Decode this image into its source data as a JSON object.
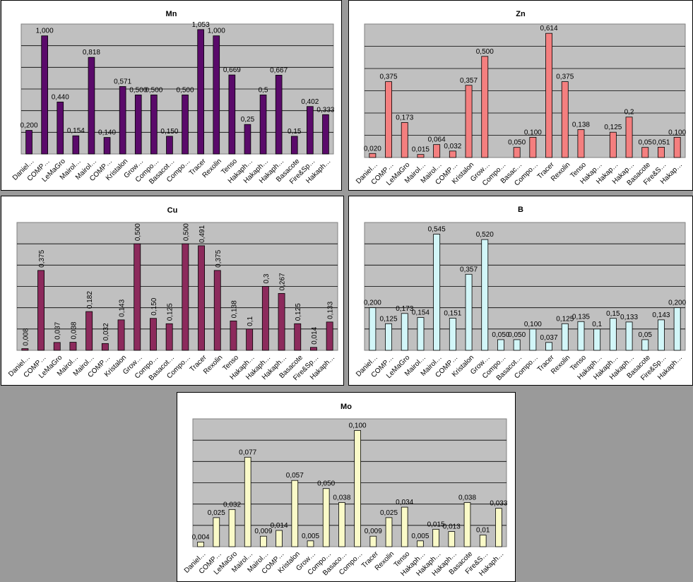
{
  "chart_data": [
    {
      "id": "mn",
      "type": "bar",
      "title": "Mn",
      "ylim": [
        0,
        1.1
      ],
      "grid": true,
      "bar_color": "#5a0a6a",
      "categories": [
        "Daniel…",
        "COMP…",
        "LeMaGro",
        "Mairol…",
        "Mairol…",
        "COMP…",
        "Kristalon",
        "Grow…",
        "Compo…",
        "Basacot…",
        "Compo…",
        "Tracer",
        "Rexolin",
        "Tenso",
        "Hakaph…",
        "Hakaph…",
        "Hakaph…",
        "Basacote",
        "Fire&Sp…",
        "Hakaph…"
      ],
      "values": [
        0.2,
        1.0,
        0.44,
        0.154,
        0.818,
        0.14,
        0.571,
        0.5,
        0.5,
        0.15,
        0.5,
        1.053,
        1.0,
        0.669,
        0.25,
        0.5,
        0.667,
        0.15,
        0.402,
        0.333
      ],
      "labels": [
        "0,200",
        "1,000",
        "0,440",
        "0,154",
        "0,818",
        "0,140",
        "0,571",
        "0,500",
        "0,500",
        "0,150",
        "0,500",
        "1,053",
        "1,000",
        "0,669",
        "0,25",
        "0,5",
        "0,667",
        "0,15",
        "0,402",
        "0,333"
      ]
    },
    {
      "id": "zn",
      "type": "bar",
      "title": "Zn",
      "ylim": [
        0,
        0.66
      ],
      "grid": true,
      "bar_color": "#f47f7f",
      "categories": [
        "Daniel…",
        "COMP…",
        "LeMaGro",
        "Mairol…",
        "Mairol…",
        "COMP…",
        "Kristalon",
        "Grow…",
        "Compo…",
        "Basac…",
        "Compo…",
        "Tracer",
        "Rexolin",
        "Tenso",
        "Hakap…",
        "Hakap…",
        "Hakap…",
        "Basacote",
        "Fire&S…",
        "Hakap…"
      ],
      "values": [
        0.02,
        0.375,
        0.173,
        0.015,
        0.064,
        0.032,
        0.357,
        0.5,
        null,
        0.05,
        0.1,
        0.614,
        0.375,
        0.138,
        null,
        0.125,
        0.2,
        0.05,
        0.051,
        0.1
      ],
      "labels": [
        "0,020",
        "0,375",
        "0,173",
        "0,015",
        "0,064",
        "0,032",
        "0,357",
        "0,500",
        "",
        "0,050",
        "0,100",
        "0,614",
        "0,375",
        "0,138",
        "",
        "0,125",
        "0,2",
        "0,05",
        "0,051",
        "0,100"
      ]
    },
    {
      "id": "cu",
      "type": "bar",
      "title": "Cu",
      "ylim": [
        0,
        0.6
      ],
      "grid": true,
      "bar_color": "#8c2a5c",
      "label_rotation": -90,
      "categories": [
        "Daniel…",
        "COMP…",
        "LeMaGro",
        "Mairol…",
        "Mairol…",
        "COMP…",
        "Kristalon",
        "Grow…",
        "Compo…",
        "Basacot…",
        "Compo…",
        "Tracer",
        "Rexolin",
        "Tenso",
        "Hakaph…",
        "Hakaph…",
        "Hakaph…",
        "Basacote",
        "Fire&Sp…",
        "Hakaph…"
      ],
      "values": [
        0.008,
        0.375,
        0.037,
        0.038,
        0.182,
        0.032,
        0.143,
        0.5,
        0.15,
        0.125,
        0.5,
        0.491,
        0.375,
        0.138,
        0.1,
        0.3,
        0.267,
        0.125,
        0.014,
        0.133
      ],
      "labels": [
        "0,008",
        "0,375",
        "0,037",
        "0,038",
        "0,182",
        "0,032",
        "0,143",
        "0,500",
        "0,150",
        "0,125",
        "0,500",
        "0,491",
        "0,375",
        "0,138",
        "0,1",
        "0,3",
        "0,267",
        "0,125",
        "0,014",
        "0,133"
      ]
    },
    {
      "id": "b",
      "type": "bar",
      "title": "B",
      "ylim": [
        0,
        0.6
      ],
      "grid": true,
      "bar_color": "#d2f6f8",
      "categories": [
        "Daniel…",
        "COMP…",
        "LeMaGro",
        "Mairol…",
        "Mairol…",
        "COMP…",
        "Kristalon",
        "Grow…",
        "Compo…",
        "Basacot…",
        "Compo…",
        "Tracer",
        "Rexolin",
        "Tenso",
        "Hakaph…",
        "Hakaph…",
        "Hakaph…",
        "Basacote",
        "Fire&Sp…",
        "Hakaph…"
      ],
      "values": [
        0.2,
        0.125,
        0.173,
        0.154,
        0.545,
        0.151,
        0.357,
        0.52,
        0.05,
        0.05,
        0.1,
        0.037,
        0.125,
        0.135,
        0.1,
        0.15,
        0.133,
        0.05,
        0.143,
        0.2
      ],
      "labels": [
        "0,200",
        "0,125",
        "0,173",
        "0,154",
        "0,545",
        "0,151",
        "0,357",
        "0,520",
        "0,050",
        "0,050",
        "0,100",
        "0,037",
        "0,125",
        "0,135",
        "0,1",
        "0,15",
        "0,133",
        "0,05",
        "0,143",
        "0,200"
      ]
    },
    {
      "id": "mo",
      "type": "bar",
      "title": "Mo",
      "ylim": [
        0,
        0.11
      ],
      "grid": true,
      "bar_color": "#fafac8",
      "categories": [
        "Daniel…",
        "COMP…",
        "LeMaGro",
        "Mairol…",
        "Mairol…",
        "COMP…",
        "Kristalon",
        "Grow…",
        "Compo…",
        "Basaco…",
        "Compo…",
        "Tracer",
        "Rexolin",
        "Tenso",
        "Hakaph…",
        "Hakaph…",
        "Hakaph…",
        "Basacote",
        "Fire&S…",
        "Hakaph…"
      ],
      "values": [
        0.004,
        0.025,
        0.032,
        0.077,
        0.009,
        0.014,
        0.057,
        0.005,
        0.05,
        0.038,
        0.1,
        0.009,
        0.025,
        0.034,
        0.005,
        0.015,
        0.013,
        0.038,
        0.01,
        0.033
      ],
      "labels": [
        "0,004",
        "0,025",
        "0,032",
        "0,077",
        "0,009",
        "0,014",
        "0,057",
        "0,005",
        "0,050",
        "0,038",
        "0,100",
        "0,009",
        "0,025",
        "0,034",
        "0,005",
        "0,015",
        "0,013",
        "0,038",
        "0,01",
        "0,033"
      ]
    }
  ]
}
